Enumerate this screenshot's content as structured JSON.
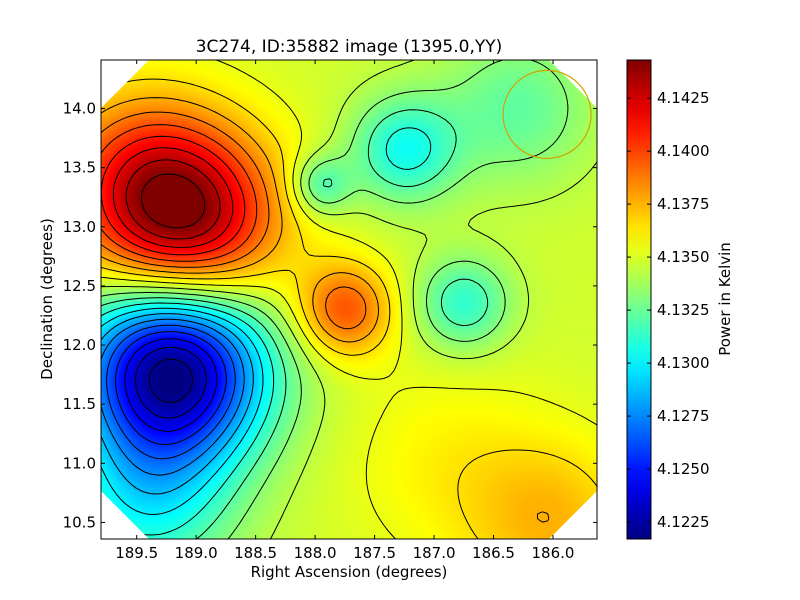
{
  "chart_data": {
    "type": "heatmap",
    "title": "3C274, ID:35882 image (1395.0,YY)",
    "xlabel": "Right Ascension (degrees)",
    "ylabel": "Declination (degrees)",
    "xlim": [
      189.8,
      185.63
    ],
    "ylim": [
      10.36,
      14.41
    ],
    "x_ticks": [
      "189.5",
      "189.0",
      "188.5",
      "188.0",
      "187.5",
      "187.0",
      "186.5",
      "186.0"
    ],
    "y_ticks": [
      "10.5",
      "11.0",
      "11.5",
      "12.0",
      "12.5",
      "13.0",
      "13.5",
      "14.0"
    ],
    "colorbar": {
      "label": "Power in Kelvin",
      "colormap": "jet",
      "range": [
        4.1217,
        4.1443
      ],
      "ticks": [
        "4.1225",
        "4.1250",
        "4.1275",
        "4.1300",
        "4.1325",
        "4.1350",
        "4.1375",
        "4.1400",
        "4.1425"
      ]
    },
    "contours": true,
    "features": [
      {
        "kind": "maximum",
        "ra": 189.1,
        "dec": 13.05,
        "value": 4.1443
      },
      {
        "kind": "minimum",
        "ra": 189.2,
        "dec": 11.8,
        "value": 4.1217
      },
      {
        "kind": "local maximum",
        "ra": 187.75,
        "dec": 12.3,
        "value": 4.139
      },
      {
        "kind": "local minimum",
        "ra": 187.25,
        "dec": 13.65,
        "value": 4.1303
      },
      {
        "kind": "local minimum",
        "ra": 186.75,
        "dec": 12.35,
        "value": 4.131
      },
      {
        "kind": "local minimum",
        "ra": 187.95,
        "dec": 13.35,
        "value": 4.1313
      }
    ],
    "beam_circle": {
      "ra": 186.05,
      "dec": 13.95,
      "radius_deg": 0.37,
      "color": "#d4a000"
    },
    "colors": {
      "background": "#ffffff",
      "contour": "#000000"
    }
  }
}
